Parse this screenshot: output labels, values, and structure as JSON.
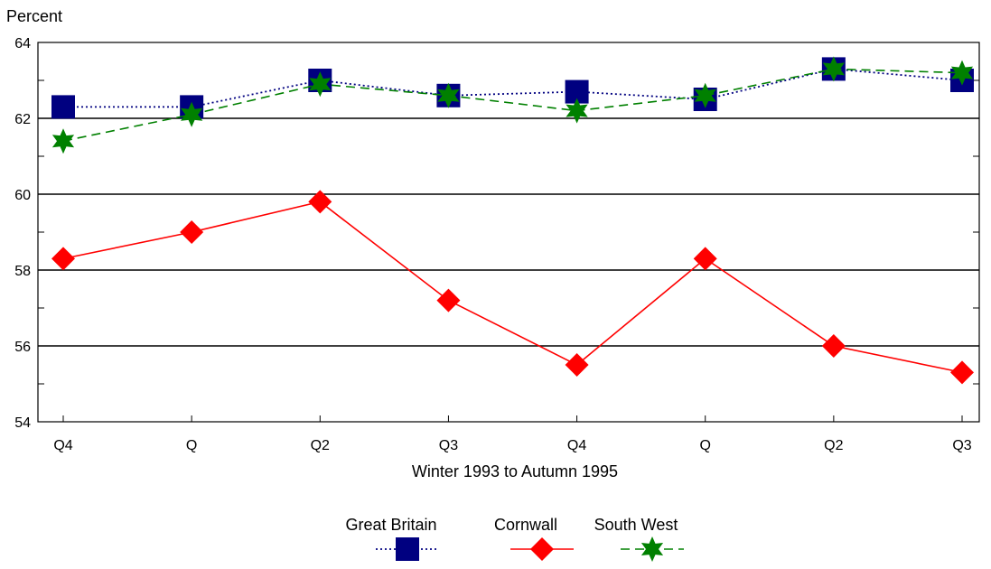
{
  "chart_data": {
    "type": "line",
    "ylabel": "Percent",
    "xlabel": "Winter 1993 to Autumn 1995",
    "ylim": [
      54,
      64
    ],
    "yticks": [
      54,
      56,
      58,
      60,
      62,
      64
    ],
    "categories": [
      "Q4",
      "Q",
      "Q2",
      "Q3",
      "Q4",
      "Q",
      "Q2",
      "Q3"
    ],
    "grid": "horizontal at major ticks",
    "legend_position": "bottom-center",
    "series": [
      {
        "name": "Great Britain",
        "color": "#000080",
        "line_style": "dotted",
        "marker": "square",
        "values": [
          62.3,
          62.3,
          63.0,
          62.6,
          62.7,
          62.5,
          63.3,
          63.0
        ]
      },
      {
        "name": "Cornwall",
        "color": "#ff0000",
        "line_style": "solid",
        "marker": "diamond",
        "values": [
          58.3,
          59.0,
          59.8,
          57.2,
          55.5,
          58.3,
          56.0,
          55.3
        ]
      },
      {
        "name": "South West",
        "color": "#008000",
        "line_style": "dashed",
        "marker": "star",
        "values": [
          61.4,
          62.1,
          62.9,
          62.6,
          62.2,
          62.6,
          63.3,
          63.2
        ]
      }
    ]
  }
}
